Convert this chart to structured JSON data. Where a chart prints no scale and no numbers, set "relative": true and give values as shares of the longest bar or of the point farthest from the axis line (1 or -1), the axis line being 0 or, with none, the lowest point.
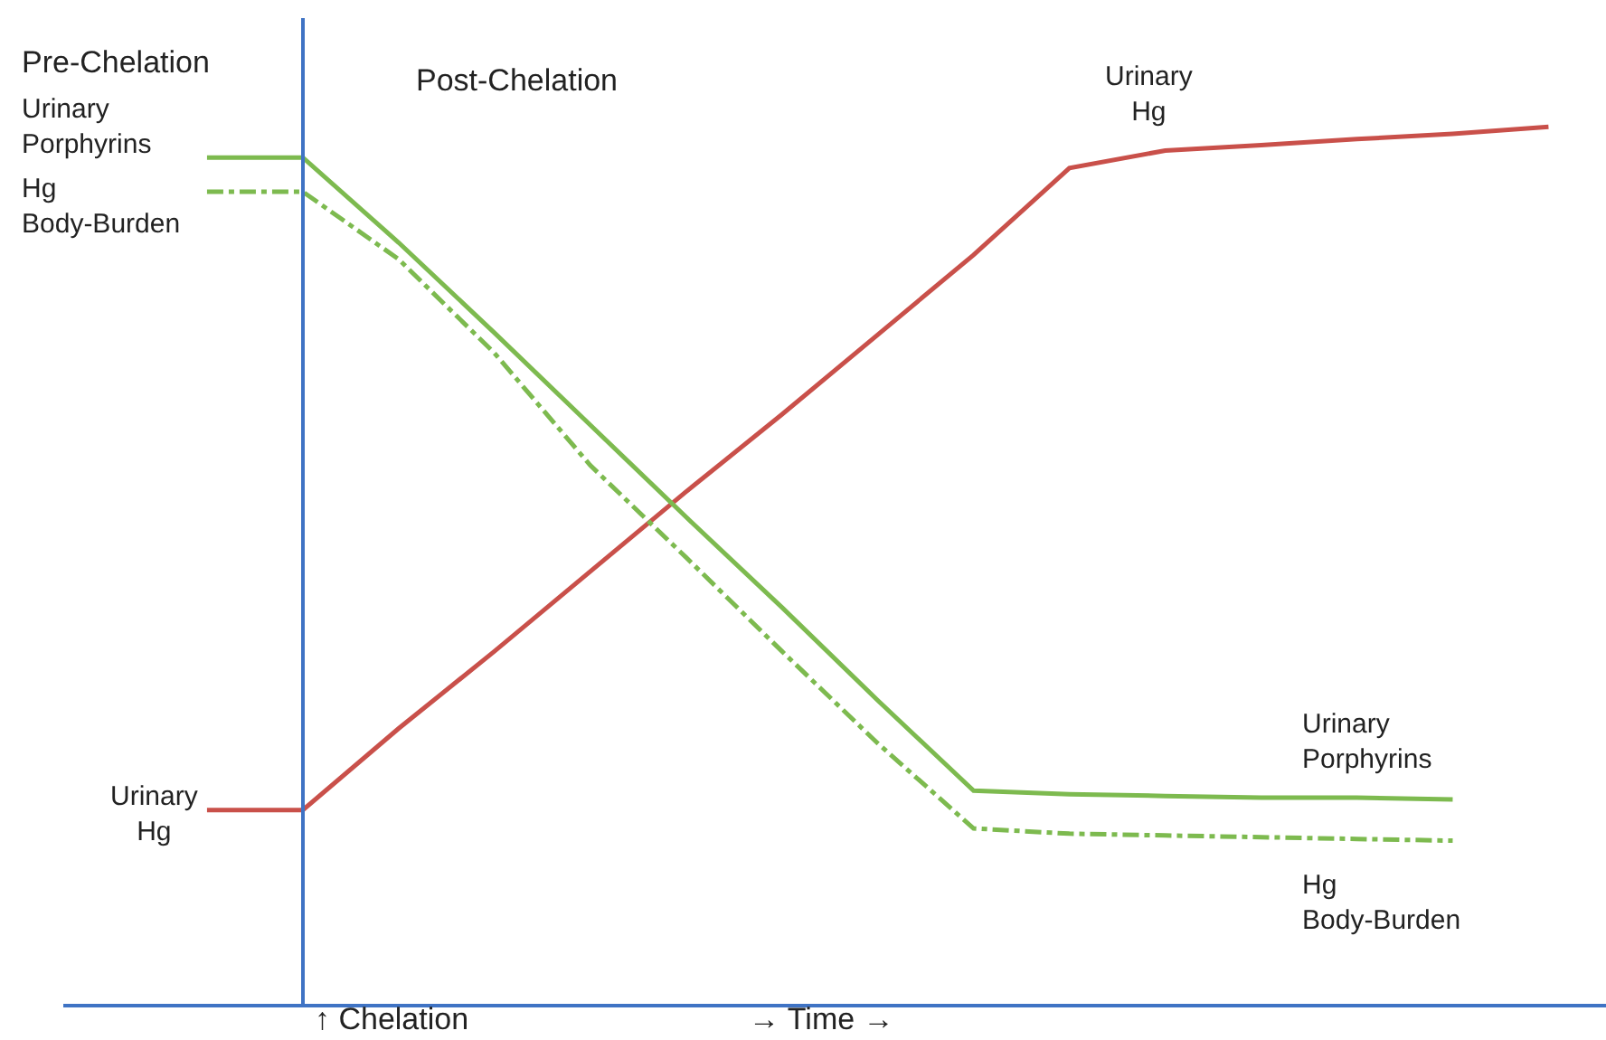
{
  "chart_data": {
    "type": "line",
    "relative": true,
    "categories": [
      null,
      null,
      null,
      null,
      null,
      null,
      null,
      null,
      null,
      null,
      null,
      null,
      null,
      null,
      null
    ],
    "series": [
      {
        "name": "Urinary Hg",
        "color": "#c9504a",
        "values": [
          0.221,
          0.221,
          0.314,
          0.402,
          0.493,
          0.584,
          0.672,
          0.763,
          0.854,
          0.953,
          0.973,
          0.979,
          0.986,
          0.992,
          1.0
        ]
      },
      {
        "name": "Urinary Porphyrins",
        "color": "#7dba4f",
        "values": [
          0.965,
          0.965,
          0.868,
          0.765,
          0.66,
          0.555,
          0.452,
          0.346,
          0.243,
          0.239,
          0.237,
          0.235,
          0.235,
          0.233,
          null
        ]
      },
      {
        "name": "Hg Body-Burden",
        "color": "#7dba4f",
        "line_style": "dashdot",
        "values": [
          0.926,
          0.926,
          0.849,
          0.742,
          0.614,
          0.509,
          0.402,
          0.297,
          0.2,
          0.194,
          0.192,
          0.19,
          0.188,
          0.186,
          null
        ]
      }
    ],
    "annotations": [
      "Pre-Chelation",
      "Post-Chelation",
      "↑ Chelation",
      "→ Time →"
    ],
    "marker": "none"
  }
}
